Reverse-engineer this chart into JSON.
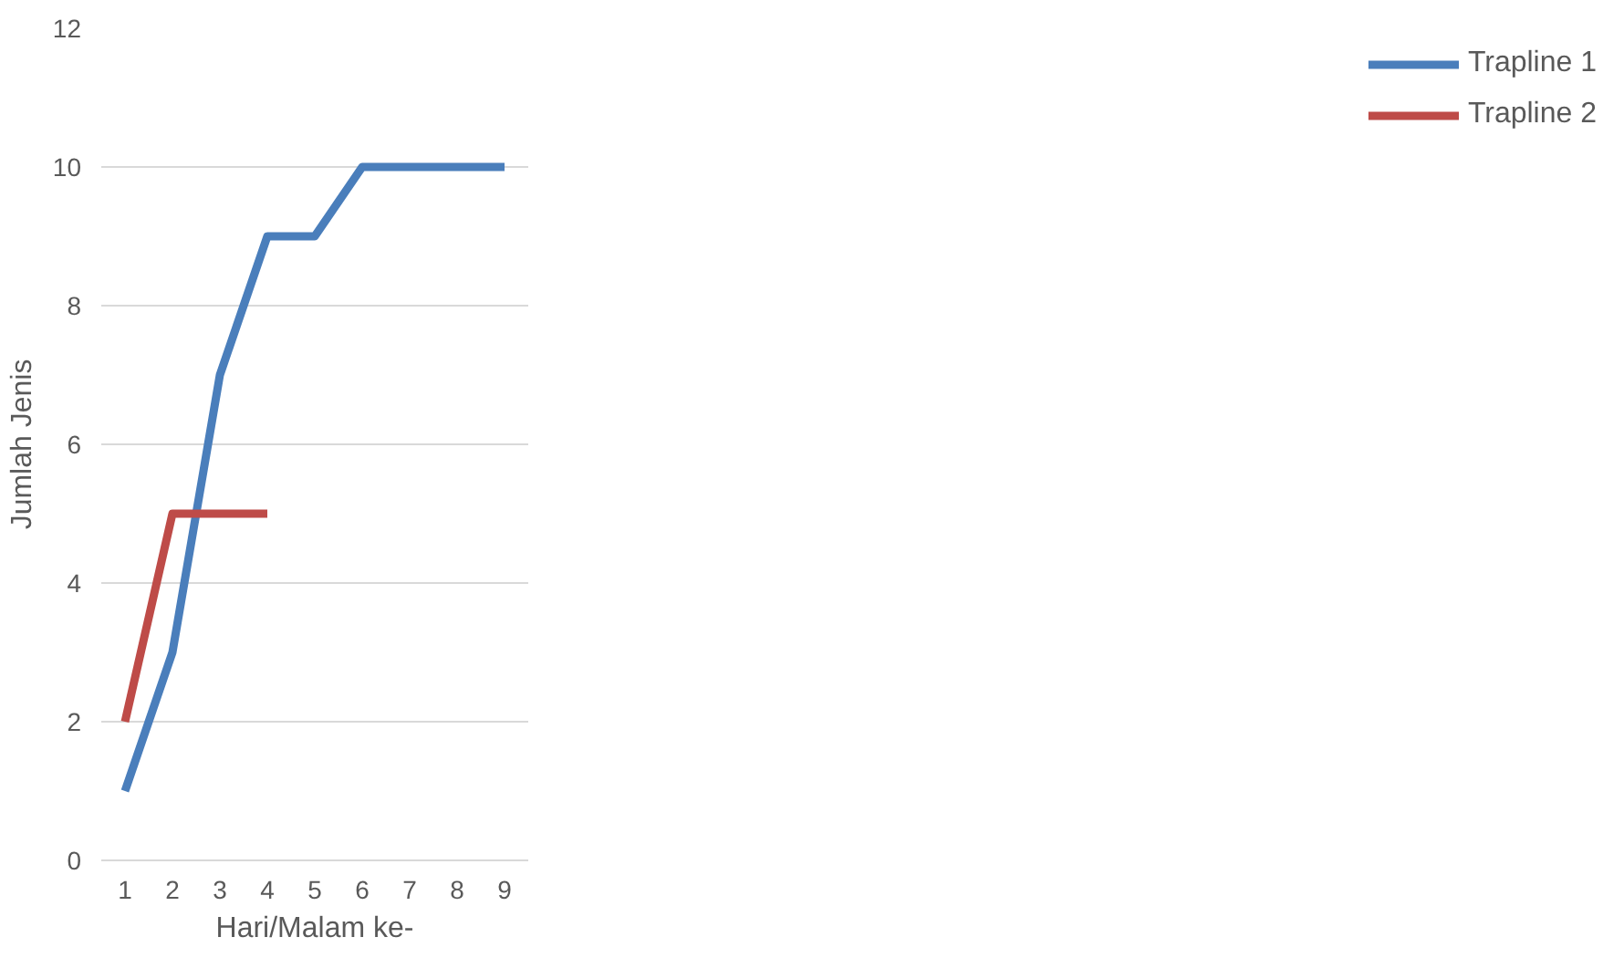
{
  "chart_data": {
    "type": "line",
    "xlabel": "Hari/Malam ke-",
    "ylabel": "Jumlah Jenis",
    "categories": [
      "1",
      "2",
      "3",
      "4",
      "5",
      "6",
      "7",
      "8",
      "9"
    ],
    "series": [
      {
        "name": "Trapline 1",
        "color": "#4a7ebb",
        "values": [
          1,
          3,
          7,
          9,
          9,
          10,
          10,
          10,
          10
        ]
      },
      {
        "name": "Trapline 2",
        "color": "#be4b48",
        "values": [
          2,
          5,
          5,
          5,
          null,
          null,
          null,
          null,
          null
        ]
      }
    ],
    "ylim": [
      0,
      12
    ],
    "yticks": [
      0,
      2,
      4,
      6,
      8,
      10,
      12
    ],
    "grid": "y",
    "legend": "right",
    "marker": "none",
    "line_style": "solid"
  }
}
